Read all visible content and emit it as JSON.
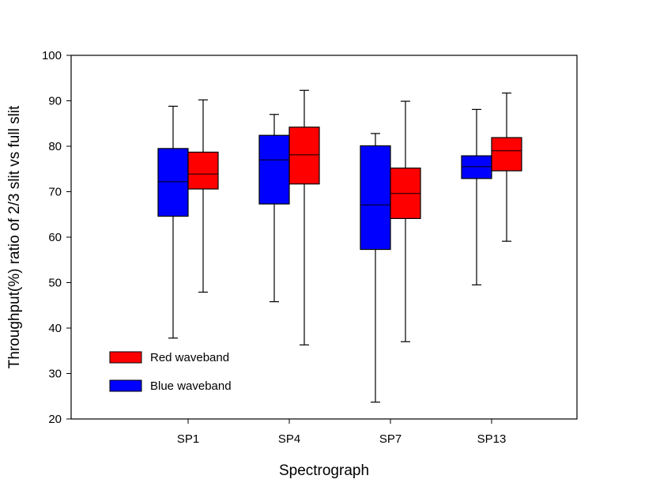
{
  "chart_data": {
    "type": "boxplot",
    "title": "",
    "xlabel": "Spectrograph",
    "ylabel": "Throughput(%) ratio of 2/3 slit vs full slit",
    "ylim": [
      20,
      100
    ],
    "yticks": [
      20,
      30,
      40,
      50,
      60,
      70,
      80,
      90,
      100
    ],
    "categories": [
      "SP1",
      "SP4",
      "SP7",
      "SP13"
    ],
    "grid": false,
    "legend_position": "bottom-left",
    "series": [
      {
        "name": "Blue waveband",
        "color": "#0000ff",
        "boxes": [
          {
            "min": 37.8,
            "q1": 64.6,
            "median": 72.2,
            "q3": 79.5,
            "max": 88.8
          },
          {
            "min": 45.8,
            "q1": 67.3,
            "median": 77.0,
            "q3": 82.4,
            "max": 87.0
          },
          {
            "min": 23.7,
            "q1": 57.3,
            "median": 67.1,
            "q3": 80.1,
            "max": 82.8
          },
          {
            "min": 49.5,
            "q1": 72.9,
            "median": 75.5,
            "q3": 77.9,
            "max": 88.1
          }
        ]
      },
      {
        "name": "Red waveband",
        "color": "#ff0000",
        "boxes": [
          {
            "min": 47.9,
            "q1": 70.6,
            "median": 73.9,
            "q3": 78.7,
            "max": 90.2
          },
          {
            "min": 36.3,
            "q1": 71.7,
            "median": 78.1,
            "q3": 84.2,
            "max": 92.3
          },
          {
            "min": 37.0,
            "q1": 64.1,
            "median": 69.6,
            "q3": 75.2,
            "max": 89.9
          },
          {
            "min": 59.1,
            "q1": 74.6,
            "median": 79.0,
            "q3": 81.9,
            "max": 91.7
          }
        ]
      }
    ],
    "legend_order": [
      "Red waveband",
      "Blue waveband"
    ]
  }
}
